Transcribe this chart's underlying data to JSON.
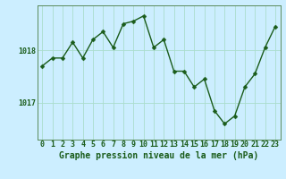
{
  "x": [
    0,
    1,
    2,
    3,
    4,
    5,
    6,
    7,
    8,
    9,
    10,
    11,
    12,
    13,
    14,
    15,
    16,
    17,
    18,
    19,
    20,
    21,
    22,
    23
  ],
  "y": [
    1017.7,
    1017.85,
    1017.85,
    1018.15,
    1017.85,
    1018.2,
    1018.35,
    1018.05,
    1018.5,
    1018.55,
    1018.65,
    1018.05,
    1018.2,
    1017.6,
    1017.6,
    1017.3,
    1017.45,
    1016.85,
    1016.6,
    1016.75,
    1017.3,
    1017.55,
    1018.05,
    1018.45
  ],
  "line_color": "#1a5c1a",
  "marker_color": "#1a5c1a",
  "bg_color": "#cceeff",
  "grid_color": "#aaddcc",
  "axis_label_color": "#1a5c1a",
  "tick_label_color": "#1a5c1a",
  "xlabel": "Graphe pression niveau de la mer (hPa)",
  "ylim": [
    1016.3,
    1018.85
  ],
  "yticks": [
    1017,
    1018
  ],
  "xticks": [
    0,
    1,
    2,
    3,
    4,
    5,
    6,
    7,
    8,
    9,
    10,
    11,
    12,
    13,
    14,
    15,
    16,
    17,
    18,
    19,
    20,
    21,
    22,
    23
  ],
  "marker_size": 2.5,
  "line_width": 1.0,
  "xlabel_fontsize": 7,
  "tick_fontsize": 6
}
